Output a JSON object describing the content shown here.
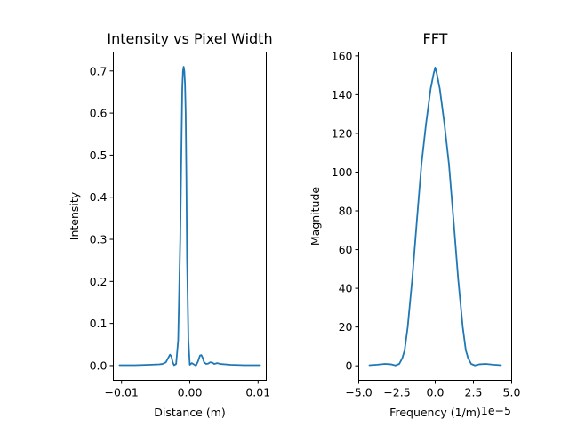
{
  "chart_data": [
    {
      "type": "line",
      "title": "Intensity vs Pixel Width",
      "xlabel": "Distance (m)",
      "ylabel": "Intensity",
      "xlim": [
        -0.0112,
        0.0112
      ],
      "ylim": [
        -0.035,
        0.745
      ],
      "xticks": [
        -0.01,
        0.0,
        0.01
      ],
      "xtick_labels": [
        "−0.01",
        "0.00",
        "0.01"
      ],
      "yticks": [
        0.0,
        0.1,
        0.2,
        0.3,
        0.4,
        0.5,
        0.6,
        0.7
      ],
      "ytick_labels": [
        "0.0",
        "0.1",
        "0.2",
        "0.3",
        "0.4",
        "0.5",
        "0.6",
        "0.7"
      ],
      "grid": false,
      "color": "#1f77b4",
      "series": [
        {
          "x": [
            -0.0103,
            -0.008,
            -0.006,
            -0.0045,
            -0.004,
            -0.0035,
            -0.0031,
            -0.0029,
            -0.0027,
            -0.0025,
            -0.0023,
            -0.002,
            -0.0017,
            -0.0014,
            -0.0012,
            -0.0011,
            -0.001,
            -0.0009,
            -0.0008,
            -0.0007,
            -0.0006,
            -0.0005,
            -0.0004,
            -0.0002,
            0.0,
            0.0003,
            0.0006,
            0.0009,
            0.0012,
            0.0015,
            0.0017,
            0.0019,
            0.0021,
            0.0024,
            0.0027,
            0.003,
            0.0033,
            0.0036,
            0.004,
            0.0045,
            0.006,
            0.008,
            0.0103
          ],
          "y": [
            0.001,
            0.001,
            0.002,
            0.003,
            0.004,
            0.008,
            0.02,
            0.026,
            0.022,
            0.008,
            0.001,
            0.004,
            0.06,
            0.3,
            0.55,
            0.66,
            0.7,
            0.71,
            0.7,
            0.67,
            0.6,
            0.45,
            0.25,
            0.06,
            0.002,
            0.006,
            0.003,
            0.0,
            0.01,
            0.024,
            0.025,
            0.018,
            0.008,
            0.004,
            0.005,
            0.008,
            0.007,
            0.004,
            0.006,
            0.004,
            0.002,
            0.001,
            0.001
          ]
        }
      ]
    },
    {
      "type": "line",
      "title": "FFT",
      "xlabel": "Frequency (1/m)",
      "ylabel": "Magnitude",
      "x_offset_label": "1e−5",
      "xlim": [
        -5.0,
        5.0
      ],
      "ylim": [
        -7.5,
        162
      ],
      "xticks": [
        -5.0,
        -2.5,
        0.0,
        2.5,
        5.0
      ],
      "xtick_labels": [
        "−5.0",
        "−2.5",
        "0.0",
        "2.5",
        "5.0"
      ],
      "yticks": [
        0,
        20,
        40,
        60,
        80,
        100,
        120,
        140,
        160
      ],
      "ytick_labels": [
        "0",
        "20",
        "40",
        "60",
        "80",
        "100",
        "120",
        "140",
        "160"
      ],
      "grid": false,
      "color": "#1f77b4",
      "series": [
        {
          "x": [
            -4.3,
            -3.8,
            -3.3,
            -2.9,
            -2.6,
            -2.35,
            -2.15,
            -2.0,
            -1.8,
            -1.5,
            -1.2,
            -0.9,
            -0.6,
            -0.3,
            -0.1,
            0.0,
            0.1,
            0.3,
            0.6,
            0.9,
            1.2,
            1.5,
            1.8,
            2.0,
            2.15,
            2.35,
            2.6,
            2.9,
            3.3,
            3.8,
            4.3
          ],
          "y": [
            0.3,
            0.6,
            1.0,
            0.8,
            0.2,
            1.0,
            4.0,
            8.0,
            20.0,
            45.0,
            75.0,
            104.0,
            125.0,
            143.0,
            151.0,
            154.0,
            151.0,
            143.0,
            125.0,
            104.0,
            75.0,
            45.0,
            20.0,
            8.0,
            4.0,
            1.0,
            0.2,
            0.8,
            1.0,
            0.6,
            0.3
          ]
        }
      ]
    }
  ]
}
